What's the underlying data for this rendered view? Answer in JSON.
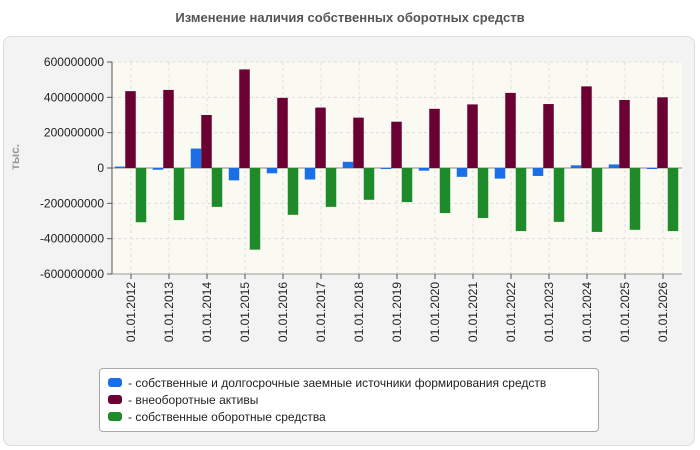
{
  "chart_data": {
    "type": "bar",
    "title": "Изменение наличия собственных оборотных средств",
    "ylabel": "тыс.",
    "xlabel": "",
    "ylim": [
      -600000000,
      600000000
    ],
    "yticks": [
      600000000,
      400000000,
      200000000,
      0,
      -200000000,
      -400000000,
      -600000000
    ],
    "ytick_labels": [
      "600000000",
      "400000000",
      "200000000",
      "0",
      "-200000000",
      "-400000000",
      "-600000000"
    ],
    "categories": [
      "01.01.2012",
      "01.01.2013",
      "01.01.2014",
      "01.01.2015",
      "01.01.2016",
      "01.01.2017",
      "01.01.2018",
      "01.01.2019",
      "01.01.2020",
      "01.01.2021",
      "01.01.2022",
      "01.01.2023",
      "01.01.2024",
      "01.01.2025",
      "01.01.2026"
    ],
    "series": [
      {
        "name": "собственные и долгосрочные заемные источники формирования средств",
        "color": "#1a6fe8",
        "values": [
          8000000,
          -10000000,
          110000000,
          -70000000,
          -30000000,
          -65000000,
          35000000,
          -5000000,
          -15000000,
          -50000000,
          -60000000,
          -45000000,
          15000000,
          20000000,
          -5000000
        ]
      },
      {
        "name": "внеоборотные активы",
        "color": "#6b0033",
        "values": [
          435000000,
          442000000,
          300000000,
          558000000,
          397000000,
          342000000,
          285000000,
          262000000,
          335000000,
          360000000,
          425000000,
          362000000,
          462000000,
          385000000,
          400000000
        ]
      },
      {
        "name": "собственные оборотные средства",
        "color": "#1f8a2a",
        "values": [
          -307000000,
          -295000000,
          -220000000,
          -462000000,
          -265000000,
          -220000000,
          -180000000,
          -193000000,
          -255000000,
          -283000000,
          -357000000,
          -305000000,
          -362000000,
          -350000000,
          -357000000
        ]
      }
    ],
    "legend": "bottom",
    "grid": true
  }
}
